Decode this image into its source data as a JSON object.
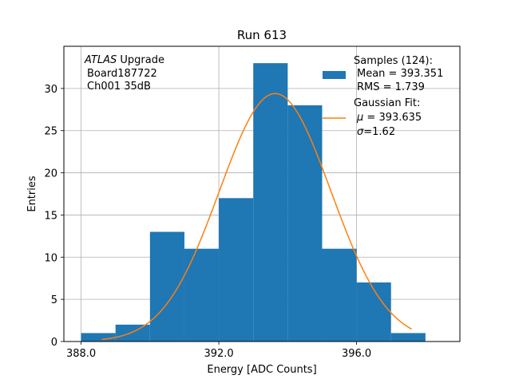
{
  "chart_data": {
    "type": "bar",
    "title": "Run 613",
    "xlabel": "Energy [ADC Counts]",
    "ylabel": "Entries",
    "xlim": [
      387.5,
      399.0
    ],
    "ylim": [
      0,
      35
    ],
    "xticks": [
      388.0,
      392.0,
      396.0
    ],
    "xtick_labels": [
      "388.0",
      "392.0",
      "396.0"
    ],
    "yticks": [
      0,
      5,
      10,
      15,
      20,
      25,
      30
    ],
    "yticks_labels": [
      "0",
      "5",
      "10",
      "15",
      "20",
      "25",
      "30"
    ],
    "grid": true,
    "bar_color": "#1f77b4",
    "bins": [
      {
        "left": 388.0,
        "right": 389.0,
        "value": 1
      },
      {
        "left": 389.0,
        "right": 390.0,
        "value": 2
      },
      {
        "left": 390.0,
        "right": 391.0,
        "value": 13
      },
      {
        "left": 391.0,
        "right": 392.0,
        "value": 11
      },
      {
        "left": 392.0,
        "right": 393.0,
        "value": 17
      },
      {
        "left": 393.0,
        "right": 394.0,
        "value": 33
      },
      {
        "left": 394.0,
        "right": 395.0,
        "value": 28
      },
      {
        "left": 395.0,
        "right": 396.0,
        "value": 11
      },
      {
        "left": 396.0,
        "right": 397.0,
        "value": 7
      },
      {
        "left": 397.0,
        "right": 398.0,
        "value": 1
      }
    ],
    "fit": {
      "type": "gaussian",
      "color": "#ff7f0e",
      "mu": 393.635,
      "sigma": 1.62,
      "amplitude": 29.4,
      "x_range": [
        388.6,
        397.6
      ]
    },
    "annotation": {
      "line1_italic": "ATLAS",
      "line1_rest": " Upgrade",
      "line2": "Board187722",
      "line3": "Ch001 35dB"
    },
    "legend": {
      "placement": "top-right",
      "samples": {
        "line1": "Samples (124):",
        "line2": "Mean = 393.351",
        "line3": "RMS = 1.739"
      },
      "fit": {
        "line1": "Gaussian Fit:",
        "mu_symbol": "μ",
        "mu_text": " = 393.635",
        "sigma_symbol": "σ",
        "sigma_text": "=1.62"
      }
    }
  }
}
